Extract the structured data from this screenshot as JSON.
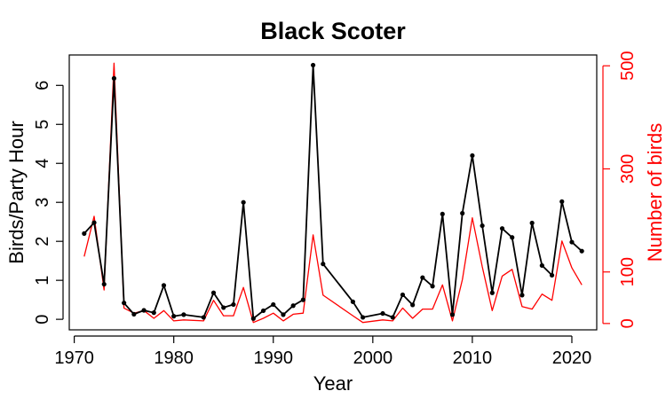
{
  "chart_data": {
    "type": "line",
    "title": "Black Scoter",
    "xlabel": "Year",
    "ylabel_left": "Birds/Party Hour",
    "ylabel_right": "Number of birds",
    "xlim": [
      1969.5,
      2022.5
    ],
    "ylim_left": [
      -0.27,
      6.78
    ],
    "ylim_right": [
      -12.3,
      521
    ],
    "x_ticks": [
      1970,
      1980,
      1990,
      2000,
      2010,
      2020
    ],
    "y_ticks_left": [
      0,
      1,
      2,
      3,
      4,
      5,
      6
    ],
    "y_ticks_right": [
      0,
      100,
      300,
      500
    ],
    "colors": {
      "birds_per_party_hour": "#000000",
      "number_of_birds": "#ff0000",
      "axis": "#000000",
      "right_axis": "#ff0000"
    },
    "series": [
      {
        "key": "birds_per_party_hour",
        "axis": "left",
        "markers": true,
        "points": [
          [
            1971,
            2.2
          ],
          [
            1972,
            2.48
          ],
          [
            1973,
            0.9
          ],
          [
            1974,
            6.18
          ],
          [
            1975,
            0.42
          ],
          [
            1976,
            0.13
          ],
          [
            1977,
            0.23
          ],
          [
            1978,
            0.17
          ],
          [
            1979,
            0.87
          ],
          [
            1980,
            0.08
          ],
          [
            1981,
            0.12
          ],
          [
            1983,
            0.05
          ],
          [
            1984,
            0.68
          ],
          [
            1985,
            0.3
          ],
          [
            1986,
            0.38
          ],
          [
            1987,
            3.0
          ],
          [
            1988,
            0.02
          ],
          [
            1989,
            0.22
          ],
          [
            1990,
            0.38
          ],
          [
            1991,
            0.12
          ],
          [
            1992,
            0.35
          ],
          [
            1993,
            0.5
          ],
          [
            1994,
            6.52
          ],
          [
            1995,
            1.42
          ],
          [
            1998,
            0.45
          ],
          [
            1999,
            0.05
          ],
          [
            2001,
            0.15
          ],
          [
            2002,
            0.05
          ],
          [
            2003,
            0.63
          ],
          [
            2004,
            0.37
          ],
          [
            2005,
            1.07
          ],
          [
            2006,
            0.85
          ],
          [
            2007,
            2.7
          ],
          [
            2008,
            0.12
          ],
          [
            2009,
            2.72
          ],
          [
            2010,
            4.2
          ],
          [
            2011,
            2.4
          ],
          [
            2012,
            0.68
          ],
          [
            2013,
            2.33
          ],
          [
            2014,
            2.1
          ],
          [
            2015,
            0.62
          ],
          [
            2016,
            2.47
          ],
          [
            2017,
            1.38
          ],
          [
            2018,
            1.13
          ],
          [
            2019,
            3.02
          ],
          [
            2020,
            1.98
          ],
          [
            2021,
            1.75
          ]
        ]
      },
      {
        "key": "number_of_birds",
        "axis": "right",
        "markers": false,
        "points": [
          [
            1971,
            130
          ],
          [
            1972,
            208
          ],
          [
            1973,
            65
          ],
          [
            1974,
            505
          ],
          [
            1975,
            30
          ],
          [
            1976,
            20
          ],
          [
            1977,
            25
          ],
          [
            1978,
            10
          ],
          [
            1979,
            25
          ],
          [
            1980,
            5
          ],
          [
            1981,
            7
          ],
          [
            1983,
            5
          ],
          [
            1984,
            45
          ],
          [
            1985,
            15
          ],
          [
            1986,
            15
          ],
          [
            1987,
            70
          ],
          [
            1988,
            2
          ],
          [
            1989,
            10
          ],
          [
            1990,
            20
          ],
          [
            1991,
            5
          ],
          [
            1992,
            18
          ],
          [
            1993,
            20
          ],
          [
            1994,
            172
          ],
          [
            1995,
            55
          ],
          [
            1998,
            15
          ],
          [
            1999,
            2
          ],
          [
            2001,
            7
          ],
          [
            2002,
            5
          ],
          [
            2003,
            30
          ],
          [
            2004,
            10
          ],
          [
            2005,
            28
          ],
          [
            2006,
            28
          ],
          [
            2007,
            75
          ],
          [
            2008,
            5
          ],
          [
            2009,
            85
          ],
          [
            2010,
            205
          ],
          [
            2011,
            110
          ],
          [
            2012,
            25
          ],
          [
            2013,
            92
          ],
          [
            2014,
            105
          ],
          [
            2015,
            33
          ],
          [
            2016,
            28
          ],
          [
            2017,
            57
          ],
          [
            2018,
            45
          ],
          [
            2019,
            160
          ],
          [
            2020,
            108
          ],
          [
            2021,
            75
          ]
        ]
      }
    ]
  }
}
